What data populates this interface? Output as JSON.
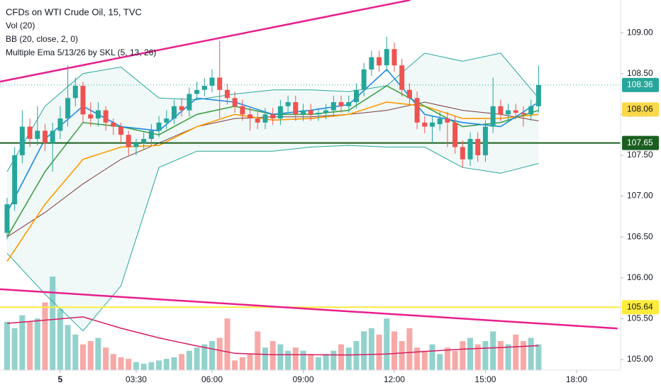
{
  "chart_data": {
    "type": "candlestick",
    "title": "CFDs on WTI Crude Oil, 15, TVC",
    "legend_lines": [
      "Vol (20)",
      "BB (20, close, 2, 0)",
      "Multiple Ema 5/13/26 by SKL (5, 13, 26)"
    ],
    "open": [
      106.55,
      106.9,
      107.5,
      107.85,
      107.7,
      107.8,
      107.65,
      107.8,
      107.95,
      108.2,
      108.35,
      108.0,
      107.95,
      108.05,
      107.9,
      107.85,
      107.75,
      107.6,
      107.65,
      107.7,
      107.8,
      107.9,
      107.95,
      108.1,
      108.05,
      108.25,
      108.3,
      108.35,
      108.45,
      108.3,
      108.2,
      108.1,
      108.0,
      107.95,
      107.9,
      108.0,
      107.95,
      108.1,
      108.15,
      108.0,
      108.05,
      108.0,
      108.02,
      108.05,
      108.15,
      108.1,
      108.15,
      108.3,
      108.55,
      108.7,
      108.6,
      108.8,
      108.6,
      108.3,
      108.2,
      107.9,
      107.85,
      107.88,
      107.95,
      107.9,
      107.6,
      107.45,
      107.7,
      107.5,
      107.85,
      108.1,
      108.0,
      108.05,
      108.02,
      108.0,
      108.1
    ],
    "high": [
      106.98,
      107.6,
      108.05,
      107.95,
      108.1,
      107.88,
      107.9,
      108.1,
      108.6,
      108.45,
      108.4,
      108.15,
      108.15,
      108.1,
      107.95,
      107.9,
      107.8,
      107.7,
      107.78,
      107.88,
      107.98,
      108.05,
      108.18,
      108.2,
      108.33,
      108.4,
      108.45,
      108.55,
      108.9,
      108.38,
      108.28,
      108.18,
      108.08,
      108.03,
      108.08,
      108.08,
      108.18,
      108.23,
      108.23,
      108.13,
      108.13,
      108.08,
      108.13,
      108.23,
      108.23,
      108.23,
      108.38,
      108.63,
      108.78,
      108.78,
      108.95,
      108.88,
      108.68,
      108.38,
      108.28,
      107.98,
      107.98,
      108.03,
      108.03,
      107.98,
      107.68,
      107.78,
      107.78,
      107.93,
      108.45,
      108.18,
      108.13,
      108.13,
      108.1,
      108.18,
      108.6
    ],
    "low": [
      106.47,
      106.82,
      107.4,
      107.6,
      107.62,
      107.55,
      107.3,
      107.7,
      107.85,
      108.1,
      107.9,
      107.85,
      107.85,
      107.8,
      107.75,
      107.65,
      107.5,
      107.5,
      107.58,
      107.62,
      107.72,
      107.82,
      107.88,
      107.97,
      107.97,
      108.17,
      108.22,
      108.27,
      107.95,
      108.12,
      108.02,
      107.92,
      107.8,
      107.82,
      107.82,
      107.87,
      107.87,
      108.02,
      107.92,
      107.92,
      107.92,
      107.92,
      107.94,
      107.97,
      108.02,
      108.02,
      108.07,
      108.22,
      108.47,
      108.52,
      108.52,
      108.52,
      108.22,
      108.12,
      107.82,
      107.77,
      107.65,
      107.8,
      107.6,
      107.52,
      107.35,
      107.37,
      107.42,
      107.42,
      107.77,
      107.92,
      107.9,
      107.94,
      107.85,
      107.92,
      108.02
    ],
    "close": [
      106.9,
      107.5,
      107.85,
      107.7,
      107.8,
      107.65,
      107.8,
      107.95,
      108.2,
      108.35,
      108.0,
      107.95,
      108.05,
      107.9,
      107.85,
      107.75,
      107.6,
      107.65,
      107.7,
      107.8,
      107.9,
      107.95,
      108.1,
      108.05,
      108.25,
      108.3,
      108.35,
      108.45,
      108.3,
      108.2,
      108.1,
      108.0,
      107.95,
      107.9,
      108.0,
      107.95,
      108.1,
      108.15,
      108.0,
      108.05,
      108.0,
      108.02,
      108.05,
      108.15,
      108.1,
      108.15,
      108.3,
      108.55,
      108.7,
      108.6,
      108.8,
      108.6,
      108.3,
      108.2,
      107.9,
      107.85,
      107.9,
      107.95,
      107.9,
      107.6,
      107.45,
      107.7,
      107.5,
      107.85,
      108.1,
      108.0,
      108.05,
      108.02,
      108.0,
      108.1,
      108.36
    ],
    "up_color": "#26a69a",
    "down_color": "#ef5350",
    "volume": [
      1500,
      1300,
      1700,
      1500,
      1600,
      2100,
      2900,
      1900,
      1400,
      1100,
      800,
      900,
      1000,
      700,
      500,
      400,
      350,
      250,
      200,
      250,
      300,
      350,
      400,
      500,
      600,
      700,
      800,
      900,
      1000,
      1600,
      300,
      400,
      500,
      1200,
      700,
      900,
      800,
      600,
      700,
      600,
      500,
      400,
      500,
      600,
      800,
      700,
      900,
      1200,
      1300,
      1100,
      1600,
      1200,
      900,
      1300,
      700,
      600,
      800,
      500,
      700,
      600,
      900,
      1000,
      800,
      900,
      1200,
      900,
      800,
      1100,
      900,
      1000,
      800
    ],
    "vlim": [
      0,
      4000
    ],
    "line_x": [
      0,
      5,
      10,
      15,
      20,
      25,
      30,
      35,
      40,
      45,
      50,
      55,
      60,
      65,
      70
    ],
    "vol_ma": {
      "color": "#d81b60",
      "values": [
        1450,
        1550,
        1650,
        1300,
        1000,
        750,
        520,
        480,
        480,
        470,
        500,
        580,
        650,
        700,
        760
      ]
    },
    "bb": {
      "color": "#26a69a",
      "fill": "#26a69a",
      "upper": [
        107.3,
        108.1,
        108.5,
        108.58,
        108.2,
        108.18,
        108.25,
        108.3,
        108.3,
        108.28,
        108.35,
        108.75,
        108.65,
        108.75,
        108.2
      ],
      "lower": [
        106.3,
        105.8,
        105.35,
        105.9,
        107.35,
        107.55,
        107.55,
        107.55,
        107.6,
        107.62,
        107.6,
        107.6,
        107.35,
        107.28,
        107.4
      ]
    },
    "series": [
      {
        "color": "#7b3b3b",
        "values": [
          106.5,
          106.8,
          107.15,
          107.45,
          107.65,
          107.85,
          107.95,
          107.97,
          107.97,
          108.0,
          108.05,
          108.15,
          108.05,
          108.0,
          107.92
        ]
      },
      {
        "color": "#ff9800",
        "values": [
          106.2,
          106.9,
          107.45,
          107.6,
          107.62,
          107.85,
          108.0,
          107.93,
          107.95,
          108.0,
          108.15,
          108.1,
          107.95,
          107.95,
          108.0
        ]
      },
      {
        "color": "#43a047",
        "values": [
          106.5,
          107.3,
          107.9,
          107.85,
          107.75,
          108.0,
          108.1,
          108.0,
          108.0,
          108.05,
          108.35,
          108.1,
          107.85,
          107.9,
          108.05
        ]
      },
      {
        "color": "#1e88e5",
        "values": [
          106.8,
          107.7,
          108.1,
          107.85,
          107.8,
          108.2,
          108.15,
          108.0,
          108.05,
          108.12,
          108.55,
          108.0,
          107.9,
          107.85,
          108.15
        ]
      }
    ],
    "trendline_color": "#e91e8c",
    "trendlines": [
      {
        "x": [
          -0.93,
          53.1
        ],
        "y": [
          108.4,
          109.4
        ]
      },
      {
        "x": [
          -0.93,
          80.4
        ],
        "y": [
          105.86,
          105.38
        ]
      }
    ],
    "price_lines": [
      {
        "value": 108.36,
        "label": "108.36",
        "color": "#26a69a",
        "text_color": "#ffffff",
        "style": "dotted"
      },
      {
        "value": 108.06,
        "label": "108.06",
        "color": "#f9d849",
        "text_color": "#131722",
        "style": "none"
      },
      {
        "value": 107.65,
        "label": "107.65",
        "color": "#1b5e20",
        "text_color": "#ffffff",
        "style": "solid"
      },
      {
        "value": 105.64,
        "label": "105.64",
        "color": "#ffeb3b",
        "text_color": "#131722",
        "style": "solid"
      }
    ],
    "ylim": [
      104.87,
      109.4
    ],
    "yticks": [
      {
        "value": 105,
        "label": "105.00"
      },
      {
        "value": 105.5,
        "label": "105.50"
      },
      {
        "value": 106,
        "label": "106.00"
      },
      {
        "value": 106.5,
        "label": "106.50"
      },
      {
        "value": 107,
        "label": "107.00"
      },
      {
        "value": 107.5,
        "label": "107.50"
      },
      {
        "value": 108,
        "label": "108.00"
      },
      {
        "value": 108.5,
        "label": "108.50"
      },
      {
        "value": 109,
        "label": "109.00"
      }
    ],
    "xlim": [
      -0.93,
      80.8
    ],
    "xticks": [
      7,
      {
        "value": 17,
        "label": "03:30"
      },
      {
        "value": 27,
        "label": "06:00"
      },
      {
        "value": 39,
        "label": "09:00"
      },
      {
        "value": 51,
        "label": "12:00"
      },
      {
        "value": 63,
        "label": "15:00"
      },
      {
        "value": 75,
        "label": "18:00"
      }
    ],
    "xtick_day_label": "5"
  }
}
